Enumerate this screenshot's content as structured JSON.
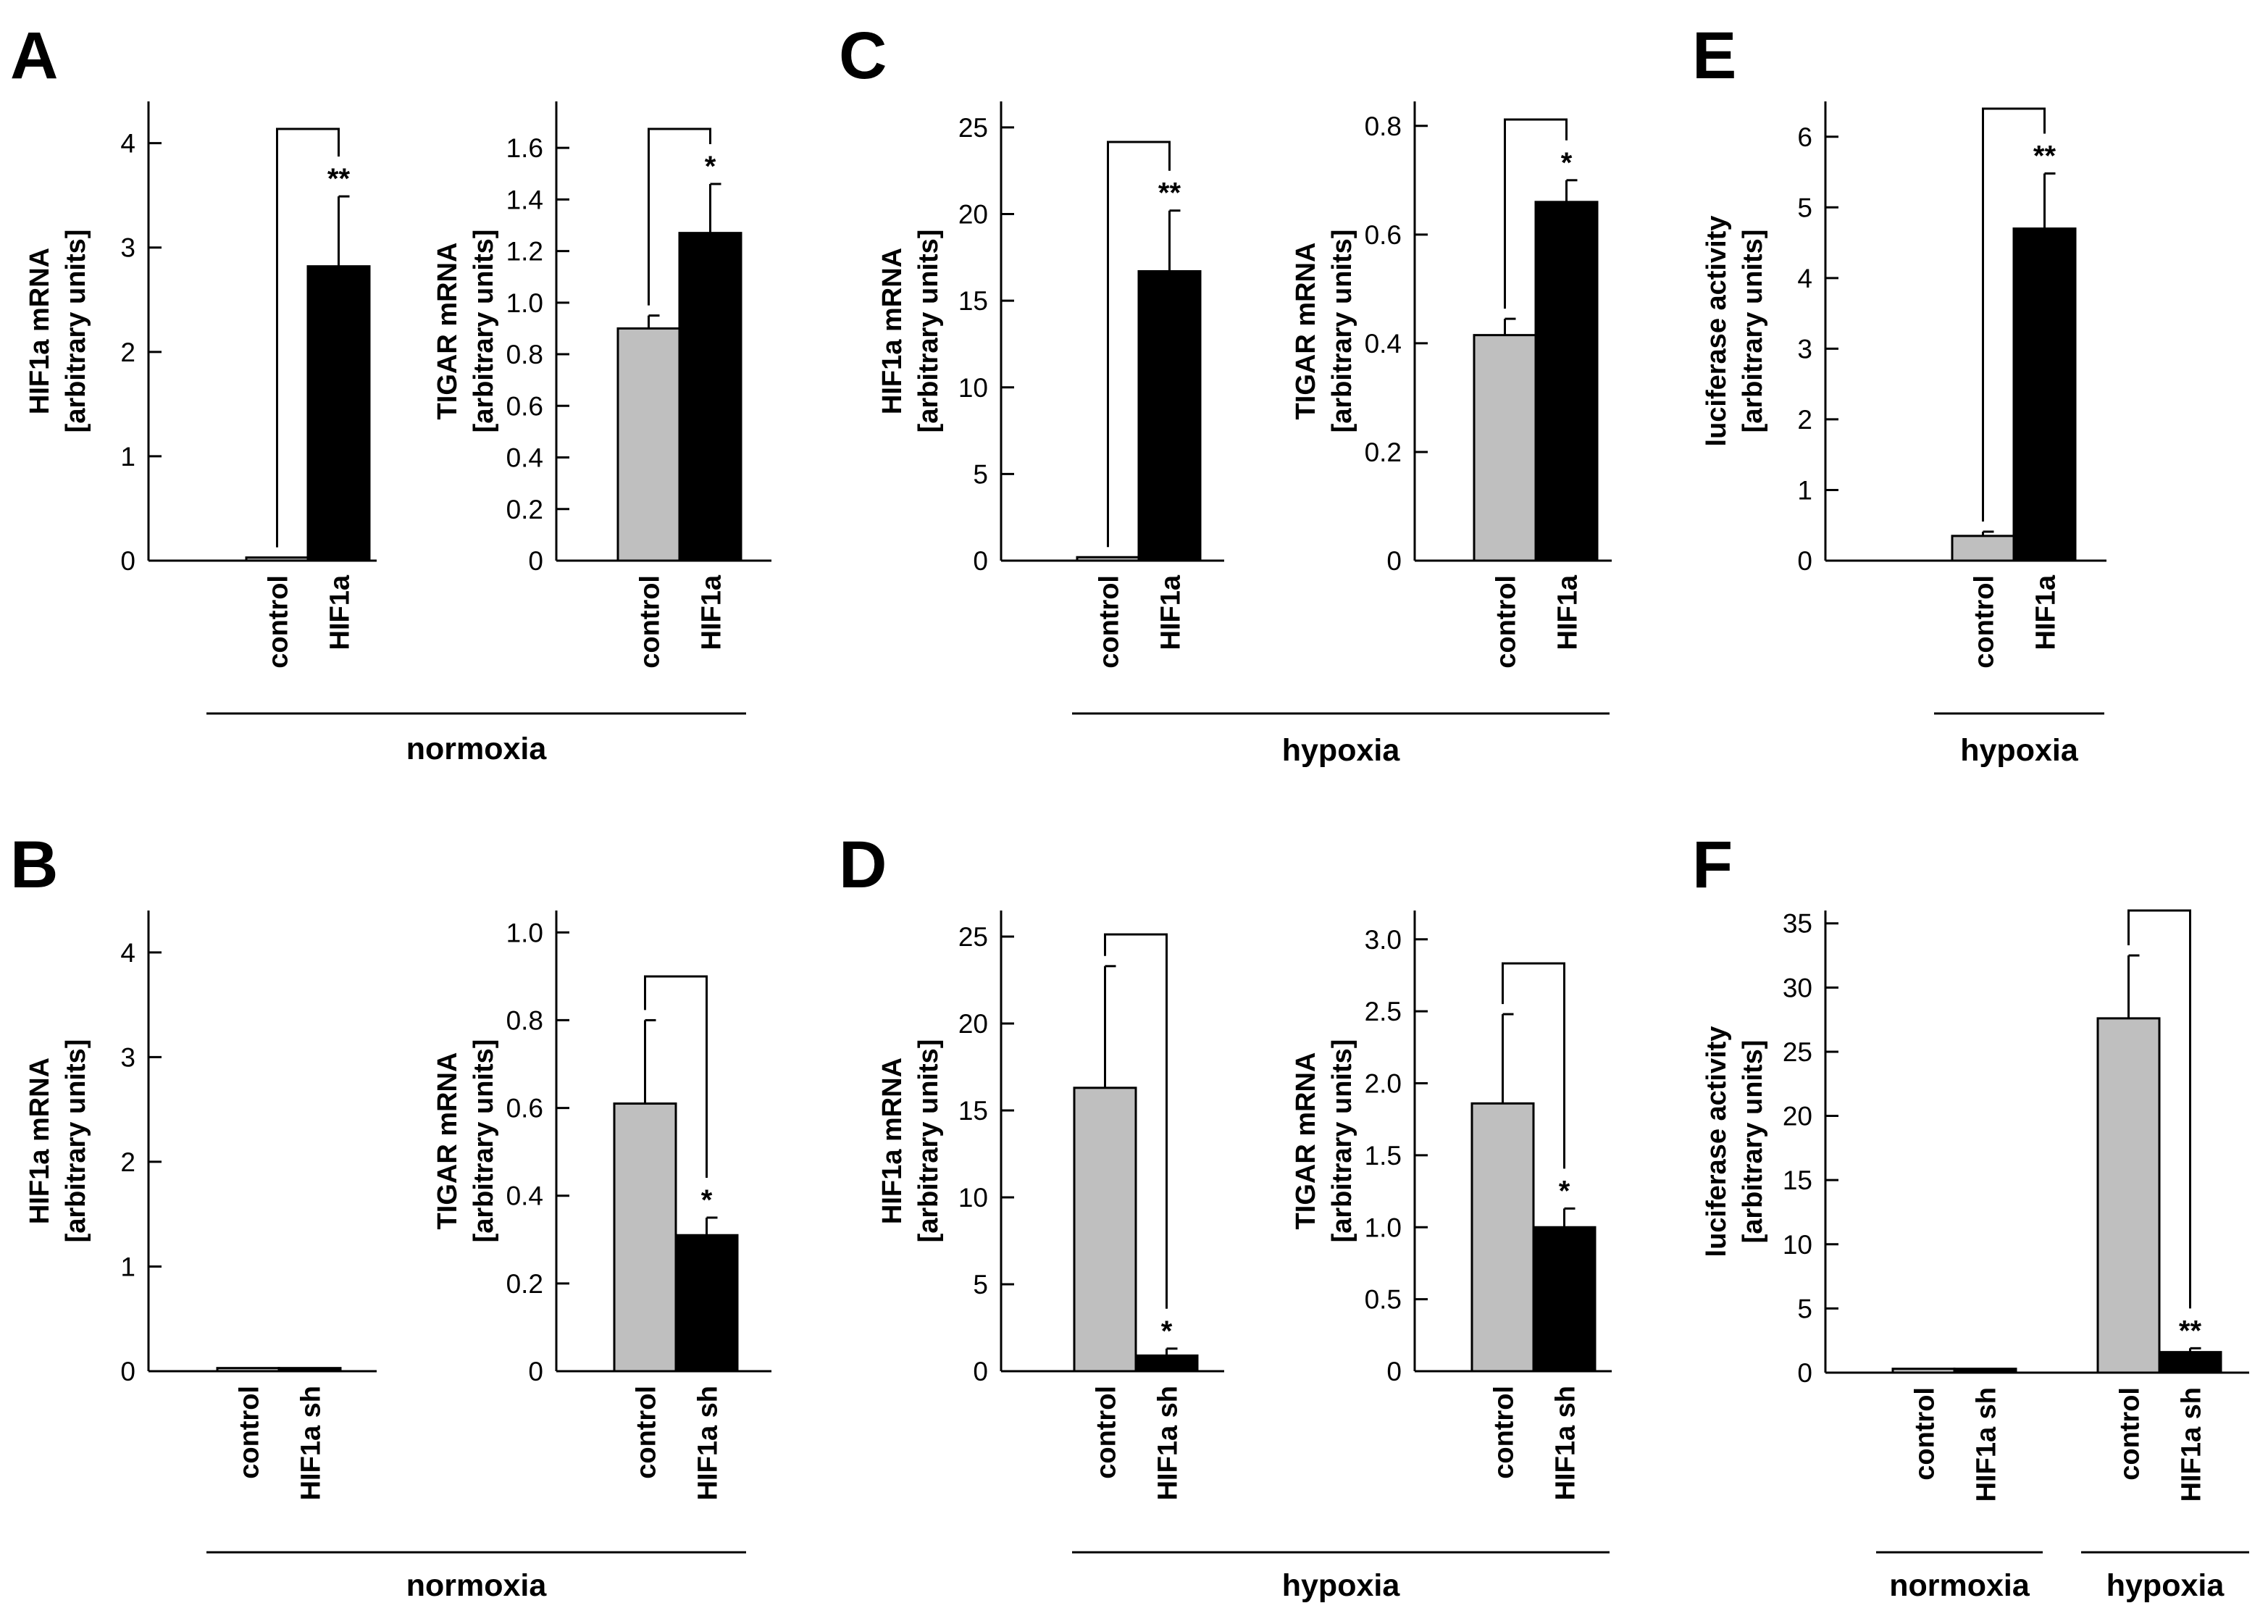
{
  "colors": {
    "control": "#bfbfbf",
    "treated": "#000000",
    "axis": "#000000"
  },
  "panel_letters": [
    "A",
    "B",
    "C",
    "D",
    "E",
    "F"
  ],
  "chart_data": [
    {
      "id": "A1",
      "panel": "A",
      "type": "bar",
      "ylabel": [
        "HIF1a mRNA",
        "[arbitrary units]"
      ],
      "categories": [
        "control",
        "HIF1a"
      ],
      "values": [
        0.03,
        2.82
      ],
      "errors": [
        0.0,
        0.67
      ],
      "ylim": [
        0,
        4.4
      ],
      "ticks": [
        0,
        1,
        2,
        3,
        4
      ],
      "tick_labels": [
        "0",
        "1",
        "2",
        "3",
        "4"
      ],
      "significance": "**"
    },
    {
      "id": "A2",
      "panel": "A",
      "type": "bar",
      "ylabel": [
        "TIGAR mRNA",
        "[arbitrary units]"
      ],
      "categories": [
        "control",
        "HIF1a"
      ],
      "values": [
        0.9,
        1.27
      ],
      "errors": [
        0.05,
        0.19
      ],
      "ylim": [
        0,
        1.78
      ],
      "ticks": [
        0,
        0.2,
        0.4,
        0.6,
        0.8,
        1.0,
        1.2,
        1.4,
        1.6
      ],
      "tick_labels": [
        "0",
        "0.2",
        "0.4",
        "0.6",
        "0.8",
        "1.0",
        "1.2",
        "1.4",
        "1.6"
      ],
      "significance": "*",
      "group_label": "normoxia"
    },
    {
      "id": "B1",
      "panel": "B",
      "type": "bar",
      "ylabel": [
        "HIF1a mRNA",
        "[arbitrary units]"
      ],
      "categories": [
        "control",
        "HIF1a sh"
      ],
      "values": [
        0.03,
        0.03
      ],
      "errors": [
        0.0,
        0.0
      ],
      "ylim": [
        0,
        4.4
      ],
      "ticks": [
        0,
        1,
        2,
        3,
        4
      ],
      "tick_labels": [
        "0",
        "1",
        "2",
        "3",
        "4"
      ]
    },
    {
      "id": "B2",
      "panel": "B",
      "type": "bar",
      "ylabel": [
        "TIGAR mRNA",
        "[arbitrary units]"
      ],
      "categories": [
        "control",
        "HIF1a sh"
      ],
      "values": [
        0.61,
        0.31
      ],
      "errors": [
        0.19,
        0.04
      ],
      "ylim": [
        0,
        1.05
      ],
      "ticks": [
        0,
        0.2,
        0.4,
        0.6,
        0.8,
        1.0
      ],
      "tick_labels": [
        "0",
        "0.2",
        "0.4",
        "0.6",
        "0.8",
        "1.0"
      ],
      "significance": "*",
      "group_label": "normoxia"
    },
    {
      "id": "C1",
      "panel": "C",
      "type": "bar",
      "ylabel": [
        "HIF1a mRNA",
        "[arbitrary units]"
      ],
      "categories": [
        "control",
        "HIF1a"
      ],
      "values": [
        0.2,
        16.7
      ],
      "errors": [
        0.0,
        3.5
      ],
      "ylim": [
        0,
        26.5
      ],
      "ticks": [
        0,
        5,
        10,
        15,
        20,
        25
      ],
      "tick_labels": [
        "0",
        "5",
        "10",
        "15",
        "20",
        "25"
      ],
      "significance": "**"
    },
    {
      "id": "C2",
      "panel": "C",
      "type": "bar",
      "ylabel": [
        "TIGAR mRNA",
        "[arbitrary units]"
      ],
      "categories": [
        "control",
        "HIF1a"
      ],
      "values": [
        0.415,
        0.66
      ],
      "errors": [
        0.03,
        0.04
      ],
      "ylim": [
        0,
        0.845
      ],
      "ticks": [
        0,
        0.2,
        0.4,
        0.6,
        0.8
      ],
      "tick_labels": [
        "0",
        "0.2",
        "0.4",
        "0.6",
        "0.8"
      ],
      "significance": "*",
      "group_label": "hypoxia"
    },
    {
      "id": "D1",
      "panel": "D",
      "type": "bar",
      "ylabel": [
        "HIF1a mRNA",
        "[arbitrary units]"
      ],
      "categories": [
        "control",
        "HIF1a sh"
      ],
      "values": [
        16.3,
        0.9
      ],
      "errors": [
        7.0,
        0.4
      ],
      "ylim": [
        0,
        26.5
      ],
      "ticks": [
        0,
        5,
        10,
        15,
        20,
        25
      ],
      "tick_labels": [
        "0",
        "5",
        "10",
        "15",
        "20",
        "25"
      ],
      "significance": "*"
    },
    {
      "id": "D2",
      "panel": "D",
      "type": "bar",
      "ylabel": [
        "TIGAR mRNA",
        "[arbitrary units]"
      ],
      "categories": [
        "control",
        "HIF1a sh"
      ],
      "values": [
        1.86,
        1.0
      ],
      "errors": [
        0.62,
        0.13
      ],
      "ylim": [
        0,
        3.2
      ],
      "ticks": [
        0,
        0.5,
        1.0,
        1.5,
        2.0,
        2.5,
        3.0
      ],
      "tick_labels": [
        "0",
        "0.5",
        "1.0",
        "1.5",
        "2.0",
        "2.5",
        "3.0"
      ],
      "significance": "*",
      "group_label": "hypoxia"
    },
    {
      "id": "E",
      "panel": "E",
      "type": "bar",
      "ylabel": [
        "luciferase activity",
        "[arbitrary units]"
      ],
      "categories": [
        "control",
        "HIF1a"
      ],
      "values": [
        0.35,
        4.7
      ],
      "errors": [
        0.06,
        0.78
      ],
      "ylim": [
        0,
        6.5
      ],
      "ticks": [
        0,
        1,
        2,
        3,
        4,
        5,
        6
      ],
      "tick_labels": [
        "0",
        "1",
        "2",
        "3",
        "4",
        "5",
        "6"
      ],
      "significance": "**",
      "group_label": "hypoxia"
    },
    {
      "id": "F",
      "panel": "F",
      "type": "bar",
      "ylabel": [
        "luciferase activity",
        "[arbitrary units]"
      ],
      "categories": [
        "control",
        "HIF1a sh",
        "control",
        "HIF1a sh"
      ],
      "values": [
        0.3,
        0.3,
        27.6,
        1.6
      ],
      "errors": [
        0.0,
        0.0,
        4.9,
        0.3
      ],
      "ylim": [
        0,
        36
      ],
      "ticks": [
        0,
        5,
        10,
        15,
        20,
        25,
        30,
        35
      ],
      "tick_labels": [
        "0",
        "5",
        "10",
        "15",
        "20",
        "25",
        "30",
        "35"
      ],
      "significance": "**",
      "groups": [
        "normoxia",
        "hypoxia"
      ]
    }
  ]
}
